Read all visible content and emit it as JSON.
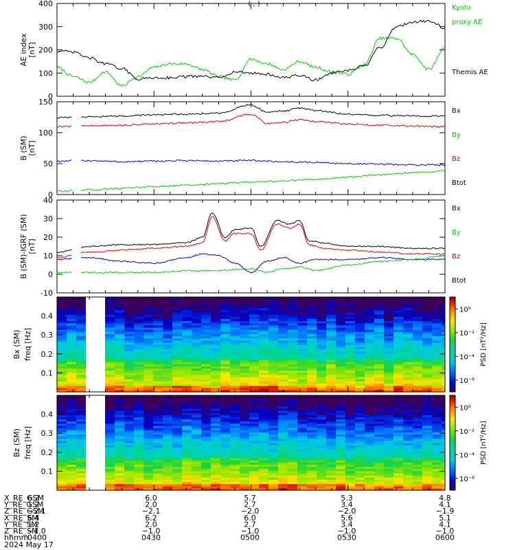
{
  "page": {
    "truncated_title": "(           ,          )"
  },
  "chart_data": [
    {
      "type": "line",
      "panel": "AE index",
      "ylabel": "AE index",
      "yunit": "[nT]",
      "ylim": [
        0,
        400
      ],
      "yticks": [
        "0",
        "100",
        "200",
        "300",
        "400"
      ],
      "xlim": [
        "04:00",
        "06:00"
      ],
      "series": [
        {
          "name": "Kyoto proxy AE",
          "color": "#00cc00",
          "x": [
            "04:00",
            "04:05",
            "04:10",
            "04:15",
            "04:20",
            "04:25",
            "04:30",
            "04:35",
            "04:40",
            "04:45",
            "04:50",
            "04:55",
            "05:00",
            "05:05",
            "05:10",
            "05:15",
            "05:20",
            "05:25",
            "05:30",
            "05:35",
            "05:40",
            "05:45",
            "05:50",
            "05:55",
            "06:00"
          ],
          "values": [
            125,
            85,
            60,
            105,
            45,
            85,
            125,
            140,
            140,
            115,
            85,
            70,
            160,
            140,
            115,
            150,
            125,
            105,
            95,
            135,
            250,
            250,
            180,
            115,
            210
          ]
        },
        {
          "name": "Themis AE",
          "color": "#000000",
          "x": [
            "04:00",
            "04:05",
            "04:10",
            "04:15",
            "04:20",
            "04:25",
            "04:30",
            "04:35",
            "04:40",
            "04:45",
            "04:50",
            "04:55",
            "05:00",
            "05:05",
            "05:10",
            "05:15",
            "05:20",
            "05:25",
            "05:30",
            "05:35",
            "05:40",
            "05:45",
            "05:50",
            "05:55",
            "06:00"
          ],
          "values": [
            195,
            190,
            165,
            140,
            120,
            75,
            80,
            80,
            85,
            85,
            80,
            105,
            100,
            95,
            80,
            90,
            70,
            100,
            110,
            130,
            210,
            300,
            320,
            325,
            295
          ]
        }
      ]
    },
    {
      "type": "line",
      "panel": "B (SM)",
      "ylabel": "B (SM)",
      "yunit": "[nT]",
      "ylim": [
        0,
        150
      ],
      "yticks": [
        "0",
        "50",
        "100",
        "150"
      ],
      "xlim": [
        "04:00",
        "06:00"
      ],
      "series": [
        {
          "name": "Bx",
          "color": "#0000cc",
          "x": [
            "04:00",
            "04:10",
            "04:20",
            "04:30",
            "04:40",
            "04:50",
            "05:00",
            "05:10",
            "05:20",
            "05:30",
            "05:40",
            "05:50",
            "06:00"
          ],
          "values": [
            54,
            55,
            53,
            54,
            55,
            54,
            55,
            53,
            52,
            50,
            49,
            48,
            48
          ]
        },
        {
          "name": "By",
          "color": "#00cc00",
          "x": [
            "04:00",
            "04:10",
            "04:20",
            "04:30",
            "04:40",
            "04:50",
            "05:00",
            "05:10",
            "05:20",
            "05:30",
            "05:40",
            "05:50",
            "06:00"
          ],
          "values": [
            5,
            8,
            10,
            13,
            15,
            18,
            20,
            22,
            25,
            28,
            32,
            35,
            38
          ]
        },
        {
          "name": "Bz",
          "color": "#dd0000",
          "x": [
            "04:00",
            "04:10",
            "04:20",
            "04:30",
            "04:40",
            "04:50",
            "05:00",
            "05:05",
            "05:10",
            "05:15",
            "05:20",
            "05:30",
            "05:40",
            "05:50",
            "06:00"
          ],
          "values": [
            110,
            111,
            112,
            114,
            116,
            118,
            130,
            115,
            117,
            121,
            118,
            114,
            112,
            111,
            110
          ]
        },
        {
          "name": "Btot",
          "color": "#000000",
          "x": [
            "04:00",
            "04:10",
            "04:20",
            "04:30",
            "04:40",
            "04:50",
            "05:00",
            "05:05",
            "05:10",
            "05:15",
            "05:20",
            "05:30",
            "05:40",
            "05:50",
            "06:00"
          ],
          "values": [
            124,
            126,
            127,
            129,
            130,
            132,
            145,
            133,
            135,
            140,
            136,
            130,
            128,
            127,
            127
          ]
        }
      ]
    },
    {
      "type": "line",
      "panel": "B (SM) - IGRF (SM)",
      "ylabel": "B (SM)-IGRF (SM)",
      "yunit": "[nT]",
      "ylim": [
        -10,
        40
      ],
      "yticks": [
        "-10",
        "0",
        "10",
        "20",
        "30",
        "40"
      ],
      "xlim": [
        "04:00",
        "06:00"
      ],
      "series": [
        {
          "name": "Bx",
          "color": "#0000cc",
          "x": [
            "04:00",
            "04:10",
            "04:20",
            "04:30",
            "04:40",
            "04:45",
            "04:50",
            "04:55",
            "05:00",
            "05:05",
            "05:10",
            "05:15",
            "05:20",
            "05:30",
            "05:40",
            "05:50",
            "06:00"
          ],
          "values": [
            8,
            9,
            7,
            6,
            9,
            11,
            10,
            6,
            1,
            7,
            9,
            6,
            8,
            8,
            9,
            8,
            8
          ]
        },
        {
          "name": "By",
          "color": "#00cc00",
          "x": [
            "04:00",
            "04:10",
            "04:20",
            "04:30",
            "04:40",
            "04:50",
            "05:00",
            "05:05",
            "05:10",
            "05:15",
            "05:20",
            "05:30",
            "05:40",
            "05:50",
            "06:00"
          ],
          "values": [
            1,
            1,
            1,
            1,
            2,
            2,
            3,
            1,
            3,
            4,
            2,
            5,
            7,
            8,
            10
          ]
        },
        {
          "name": "Bz",
          "color": "#dd0000",
          "x": [
            "04:00",
            "04:10",
            "04:20",
            "04:30",
            "04:40",
            "04:45",
            "04:48",
            "04:52",
            "04:55",
            "05:00",
            "05:03",
            "05:08",
            "05:12",
            "05:15",
            "05:18",
            "05:22",
            "05:30",
            "05:40",
            "05:50",
            "06:00"
          ],
          "values": [
            9,
            12,
            13,
            14,
            15,
            17,
            31,
            18,
            22,
            22,
            13,
            27,
            25,
            27,
            16,
            14,
            13,
            12,
            11,
            11
          ]
        },
        {
          "name": "Btot",
          "color": "#000000",
          "x": [
            "04:00",
            "04:10",
            "04:20",
            "04:30",
            "04:40",
            "04:45",
            "04:48",
            "04:52",
            "04:55",
            "05:00",
            "05:03",
            "05:08",
            "05:12",
            "05:15",
            "05:18",
            "05:22",
            "05:30",
            "05:40",
            "05:50",
            "06:00"
          ],
          "values": [
            12,
            15,
            16,
            16,
            17,
            20,
            33,
            20,
            24,
            25,
            15,
            29,
            27,
            29,
            18,
            17,
            15,
            15,
            14,
            14
          ]
        }
      ]
    },
    {
      "type": "heatmap",
      "panel": "Bx (SM) spectrogram",
      "ylabel": "Bx (SM)",
      "ylabel2": "freq  [Hz]",
      "ylim": [
        0,
        0.5
      ],
      "yticks": [
        "0.1",
        "0.2",
        "0.3",
        "0.4"
      ],
      "colorbar_label": "PSD  [nT²/Hz]",
      "colorbar_ticks": [
        "10⁰",
        "10⁻²",
        "10⁻⁴",
        "10⁻⁶"
      ],
      "colorbar_exponents": [
        0,
        -2,
        -4,
        -6
      ],
      "psd_range_log10": [
        -7,
        1
      ],
      "data_gap": [
        "04:09",
        "04:14"
      ],
      "xlim": [
        "04:00",
        "06:00"
      ]
    },
    {
      "type": "heatmap",
      "panel": "Bz (SM) spectrogram",
      "ylabel": "Bz (SM)",
      "ylabel2": "freq  [Hz]",
      "ylim": [
        0,
        0.5
      ],
      "yticks": [
        "0.1",
        "0.2",
        "0.3",
        "0.4"
      ],
      "colorbar_label": "PSD  [nT²/Hz]",
      "colorbar_ticks": [
        "10⁰",
        "10⁻²",
        "10⁻⁴",
        "10⁻⁶"
      ],
      "colorbar_exponents": [
        0,
        -2,
        -4,
        -6
      ],
      "psd_range_log10": [
        -7,
        1
      ],
      "data_gap": [
        "04:09",
        "04:14"
      ],
      "xlim": [
        "04:00",
        "06:00"
      ]
    }
  ],
  "ephemeris": {
    "columns": [
      "0400",
      "0430",
      "0500",
      "0530",
      "0600"
    ],
    "rows": [
      {
        "label": "X_RE_GSM",
        "values": [
          "6.2",
          "6.0",
          "5.7",
          "5.3",
          "4.8"
        ]
      },
      {
        "label": "Y_RE_GSM",
        "values": [
          "1.2",
          "2.0",
          "2.7",
          "3.4",
          "4.1"
        ]
      },
      {
        "label": "Z_RE_GSM",
        "values": [
          "−2.1",
          "−2.1",
          "−2.0",
          "−2.0",
          "−1.9"
        ]
      },
      {
        "label": "X_RE_SM",
        "values": [
          "6.4",
          "6.2",
          "6.0",
          "5.6",
          "5.1"
        ]
      },
      {
        "label": "Y_RE_SM",
        "values": [
          "1.2",
          "2.0",
          "2.7",
          "3.4",
          "4.1"
        ]
      },
      {
        "label": "Z_RE_SM",
        "values": [
          "−1.0",
          "−1.0",
          "−1.0",
          "−1.0",
          "−1.0"
        ]
      },
      {
        "label": "hhmm",
        "values": [
          "0400",
          "0430",
          "0500",
          "0530",
          "0600"
        ]
      }
    ],
    "date": "2024 May 17"
  }
}
